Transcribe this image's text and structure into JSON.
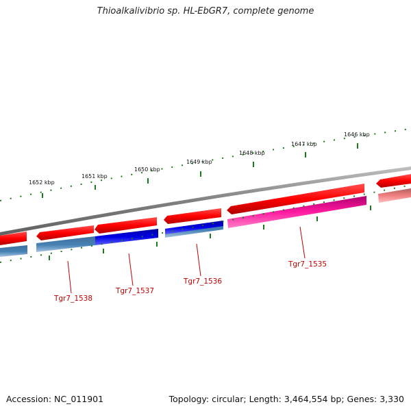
{
  "title": "Thioalkalivibrio sp. HL-EbGR7, complete genome",
  "footer": {
    "accession": "Accession: NC_011901",
    "topology": "Topology: circular; Length: 3,464,554 bp; Genes: 3,330"
  },
  "scale_labels": [
    "1652 kbp",
    "1651 kbp",
    "1650 kbp",
    "1649 kbp",
    "1648 kbp",
    "1647 kbp",
    "1646 kbp"
  ],
  "gene_labels": [
    "Tgr7_1538",
    "Tgr7_1537",
    "Tgr7_1536",
    "Tgr7_1535"
  ],
  "colors": {
    "backbone": "#808080",
    "forward_cds": "#e80000",
    "reverse_track_steelblue": "#4682b4",
    "reverse_track_blue": "#0000e0",
    "reverse_track_pink": "#e0008c",
    "reverse_track_salmon": "#f08080",
    "tick": "#1a7a1a",
    "gene_label": "#c00000"
  }
}
